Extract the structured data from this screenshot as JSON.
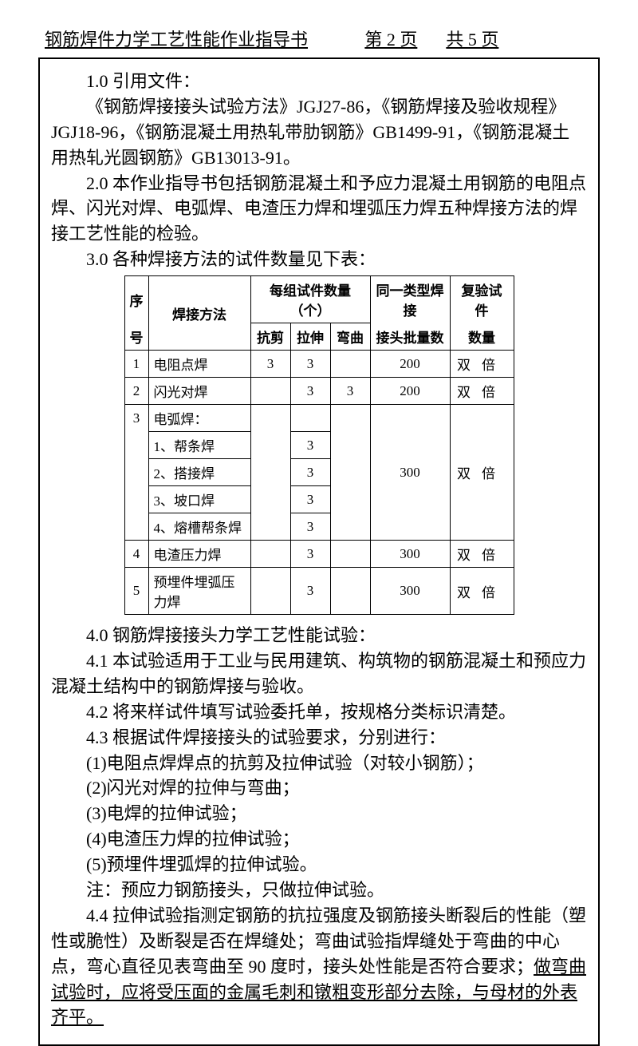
{
  "header": {
    "title": "钢筋焊件力学工艺性能作业指导书",
    "page_current": "第 2 页",
    "page_total": "共 5 页"
  },
  "sections": {
    "s1_0": "1.0 引用文件：",
    "s1_0_body1": "《钢筋焊接接头试验方法》JGJ27-86，《钢筋焊接及验收规程》",
    "s1_0_body2": "JGJ18-96，《钢筋混凝土用热轧带肋钢筋》GB1499-91，《钢筋混凝土用热轧光圆钢筋》GB13013-91。",
    "s2_0": "2.0 本作业指导书包括钢筋混凝土和予应力混凝土用钢筋的电阻点焊、闪光对焊、电弧焊、电渣压力焊和埋弧压力焊五种焊接方法的焊接工艺性能的检验。",
    "s3_0": "3.0 各种焊接方法的试件数量见下表：",
    "s4_0": "4.0 钢筋焊接接头力学工艺性能试验：",
    "s4_1": "4.1 本试验适用于工业与民用建筑、构筑物的钢筋混凝土和预应力混凝土结构中的钢筋焊接与验收。",
    "s4_2": "4.2 将来样试件填写试验委托单，按规格分类标识清楚。",
    "s4_3": "4.3 根据试件焊接接头的试验要求，分别进行：",
    "s4_3_1": "(1)电阻点焊焊点的抗剪及拉伸试验（对较小钢筋）；",
    "s4_3_2": "(2)闪光对焊的拉伸与弯曲；",
    "s4_3_3": "(3)电焊的拉伸试验；",
    "s4_3_4": "(4)电渣压力焊的拉伸试验；",
    "s4_3_5": "(5)预埋件埋弧焊的拉伸试验。",
    "s4_3_note": "注：预应力钢筋接头，只做拉伸试验。",
    "s4_4a": "4.4 拉伸试验指测定钢筋的抗拉强度及钢筋接头断裂后的性能（塑性或脆性）及断裂是否在焊缝处；弯曲试验指焊缝处于弯曲的中心点，弯心直径见表弯曲至 90 度时，接头处性能是否符合要求；",
    "s4_4b": "做弯曲试验时，应将受压面的金属毛刺和镦粗变形部分去除，与母材的外表齐平。"
  },
  "table": {
    "headers": {
      "seq": "序号",
      "method": "焊接方法",
      "group_qty": "每组试件数量（个）",
      "shear": "抗剪",
      "tensile": "拉伸",
      "bend": "弯曲",
      "batch": "同一类型焊接接头批量数",
      "batch_l1": "同一类型焊接",
      "batch_l2": "接头批量数",
      "retest": "复验试件数量",
      "retest_l1": "复验试件",
      "retest_l2": "数量"
    },
    "rows": [
      {
        "seq": "1",
        "method": "电阻点焊",
        "shear": "3",
        "tensile": "3",
        "bend": "",
        "batch": "200",
        "retest": "双倍"
      },
      {
        "seq": "2",
        "method": "闪光对焊",
        "shear": "",
        "tensile": "3",
        "bend": "3",
        "batch": "200",
        "retest": "双倍"
      },
      {
        "seq": "3",
        "method": "电弧焊：",
        "shear": "",
        "tensile": "",
        "bend": "",
        "batch": "",
        "retest": ""
      },
      {
        "seq": "",
        "method": "1、帮条焊",
        "shear": "",
        "tensile": "3",
        "bend": "",
        "batch": "",
        "retest": ""
      },
      {
        "seq": "",
        "method": "2、搭接焊",
        "shear": "",
        "tensile": "3",
        "bend": "",
        "batch": "300",
        "retest": "双倍"
      },
      {
        "seq": "",
        "method": "3、坡口焊",
        "shear": "",
        "tensile": "3",
        "bend": "",
        "batch": "",
        "retest": ""
      },
      {
        "seq": "",
        "method": "4、熔槽帮条焊",
        "shear": "",
        "tensile": "3",
        "bend": "",
        "batch": "",
        "retest": ""
      },
      {
        "seq": "4",
        "method": "电渣压力焊",
        "shear": "",
        "tensile": "3",
        "bend": "",
        "batch": "300",
        "retest": "双倍"
      },
      {
        "seq": "5",
        "method": "预埋件埋弧压力焊",
        "shear": "",
        "tensile": "3",
        "bend": "",
        "batch": "300",
        "retest": "双倍"
      }
    ]
  }
}
